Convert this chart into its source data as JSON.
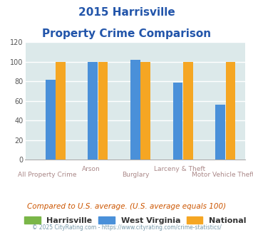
{
  "title_line1": "2015 Harrisville",
  "title_line2": "Property Crime Comparison",
  "categories": [
    "All Property Crime",
    "Arson",
    "Burglary",
    "Larceny & Theft",
    "Motor Vehicle Theft"
  ],
  "cat_labels_top": [
    "",
    "Arson",
    "",
    "Larceny & Theft",
    ""
  ],
  "cat_labels_bot": [
    "All Property Crime",
    "",
    "Burglary",
    "",
    "Motor Vehicle Theft"
  ],
  "harrisville": [
    0,
    0,
    0,
    0,
    0
  ],
  "west_virginia": [
    82,
    100,
    102,
    79,
    56
  ],
  "national": [
    100,
    100,
    100,
    100,
    100
  ],
  "harrisville_color": "#7ab648",
  "west_virginia_color": "#4a90d9",
  "national_color": "#f5a623",
  "ylim": [
    0,
    120
  ],
  "yticks": [
    0,
    20,
    40,
    60,
    80,
    100,
    120
  ],
  "plot_bg_color": "#dce9ea",
  "grid_color": "#ffffff",
  "title_color": "#2255aa",
  "axis_label_color": "#aa8888",
  "legend_label_harrisville": "Harrisville",
  "legend_label_wv": "West Virginia",
  "legend_label_national": "National",
  "footer_text": "Compared to U.S. average. (U.S. average equals 100)",
  "copyright_text": "© 2025 CityRating.com - https://www.cityrating.com/crime-statistics/",
  "footer_color": "#cc5500",
  "copyright_color": "#7799aa"
}
